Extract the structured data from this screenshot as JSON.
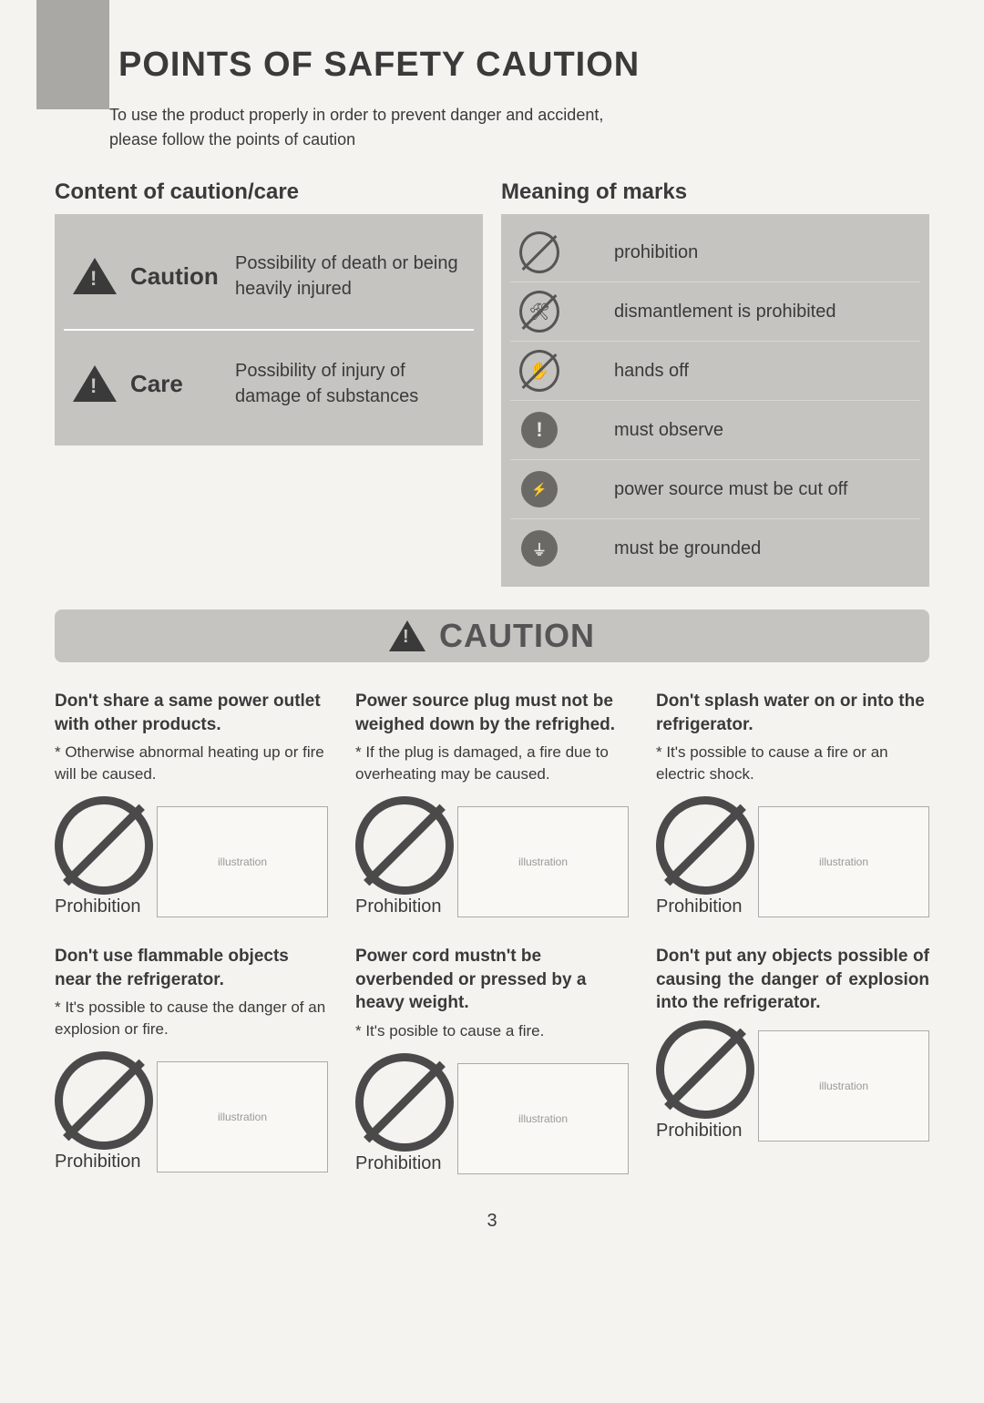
{
  "title": "POINTS OF SAFETY CAUTION",
  "intro_line1": "To use the product properly in order to prevent danger and accident,",
  "intro_line2": "please follow the points of caution",
  "left_heading": "Content of caution/care",
  "right_heading": "Meaning of marks",
  "caution_label": "Caution",
  "caution_desc": "Possibility of death or being heavily injured",
  "care_label": "Care",
  "care_desc": "Possibility of injury of damage of substances",
  "marks": [
    {
      "text": "prohibition"
    },
    {
      "text": "dismantlement is prohibited"
    },
    {
      "text": "hands off"
    },
    {
      "text": "must observe"
    },
    {
      "text": "power source must be cut off"
    },
    {
      "text": "must be grounded"
    }
  ],
  "band": "CAUTION",
  "cells": [
    {
      "title": "Don't share a same power outlet with other products.",
      "sub": "* Otherwise abnormal heating up or fire will be caused.",
      "label": "Prohibition"
    },
    {
      "title": "Power source plug must not be weighed down by the refrighed.",
      "sub": "* If the plug is damaged, a fire due to overheating may be caused.",
      "label": "Prohibition"
    },
    {
      "title": "Don't splash water on or into the refrigerator.",
      "sub": "* It's possible to cause a fire or an electric shock.",
      "label": "Prohibition"
    },
    {
      "title": "Don't use flammable objects near the refrigerator.",
      "sub": "* It's possible to cause the danger of an explosion or fire.",
      "label": "Prohibition"
    },
    {
      "title": "Power cord mustn't be overbended or pressed by a heavy weight.",
      "sub": "* It's posible to cause a fire.",
      "label": "Prohibition"
    },
    {
      "title": "Don't put any objects possible of causing the danger of explosion into the refrigerator.",
      "sub": "",
      "label": "Prohibition",
      "justify": true
    }
  ],
  "page_number": "3"
}
